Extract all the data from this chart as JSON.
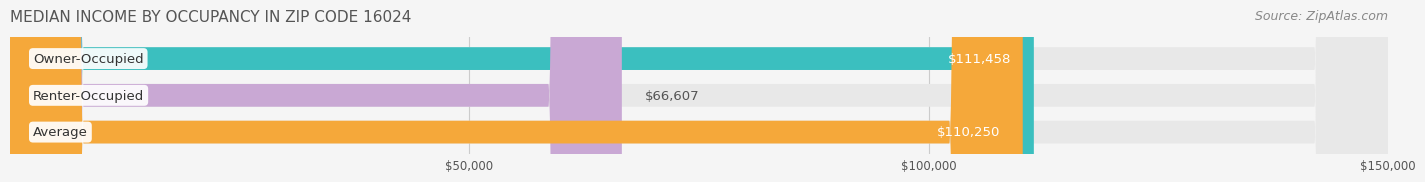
{
  "title": "MEDIAN INCOME BY OCCUPANCY IN ZIP CODE 16024",
  "source": "Source: ZipAtlas.com",
  "categories": [
    "Owner-Occupied",
    "Renter-Occupied",
    "Average"
  ],
  "values": [
    111458,
    66607,
    110250
  ],
  "bar_colors": [
    "#3bbfbf",
    "#c9a8d4",
    "#f5a83a"
  ],
  "label_colors": [
    "#ffffff",
    "#555555",
    "#ffffff"
  ],
  "value_labels": [
    "$111,458",
    "$66,607",
    "$110,250"
  ],
  "xlim": [
    0,
    150000
  ],
  "xticks": [
    0,
    50000,
    100000,
    150000
  ],
  "xticklabels": [
    "",
    "$50,000",
    "$100,000",
    "$150,000"
  ],
  "bg_color": "#f5f5f5",
  "bar_bg_color": "#e8e8e8",
  "bar_height": 0.62,
  "title_fontsize": 11,
  "source_fontsize": 9,
  "label_fontsize": 9.5,
  "value_fontsize": 9.5
}
